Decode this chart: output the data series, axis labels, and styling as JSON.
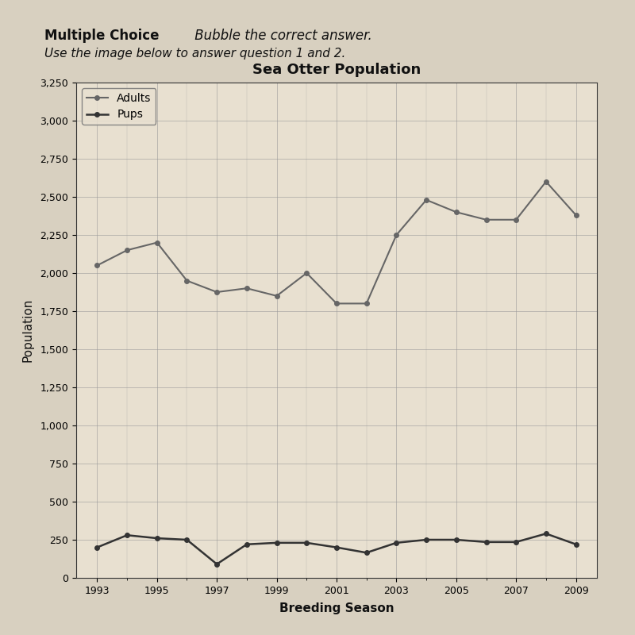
{
  "title": "Sea Otter Population",
  "xlabel": "Breeding Season",
  "ylabel": "Population",
  "header_line1_bold": "Multiple Choice",
  "header_line1_italic": " Bubble the correct answer.",
  "header_line2": "Use the image below to answer question 1 and 2.",
  "years": [
    1993,
    1994,
    1995,
    1996,
    1997,
    1998,
    1999,
    2000,
    2001,
    2002,
    2003,
    2004,
    2005,
    2006,
    2007,
    2008,
    2009
  ],
  "adults": [
    2050,
    2150,
    2200,
    1950,
    1875,
    1900,
    1850,
    2000,
    1800,
    1800,
    2250,
    2480,
    2400,
    2350,
    2350,
    2600,
    2380
  ],
  "pups": [
    200,
    280,
    260,
    250,
    90,
    220,
    230,
    230,
    200,
    165,
    230,
    250,
    250,
    235,
    235,
    290,
    220
  ],
  "adults_color": "#666666",
  "pups_color": "#333333",
  "grid_color": "#999999",
  "bg_color": "#d8d0c0",
  "plot_bg_color": "#e8e0d0",
  "ylim": [
    0,
    3250
  ],
  "yticks": [
    0,
    250,
    500,
    750,
    1000,
    1250,
    1500,
    1750,
    2000,
    2250,
    2500,
    2750,
    3000,
    3250
  ],
  "xticks": [
    1993,
    1995,
    1997,
    1999,
    2001,
    2003,
    2005,
    2007,
    2009
  ],
  "title_fontsize": 13,
  "label_fontsize": 11,
  "tick_fontsize": 9,
  "legend_fontsize": 10,
  "adults_label": "Adults",
  "pups_label": "Pups"
}
